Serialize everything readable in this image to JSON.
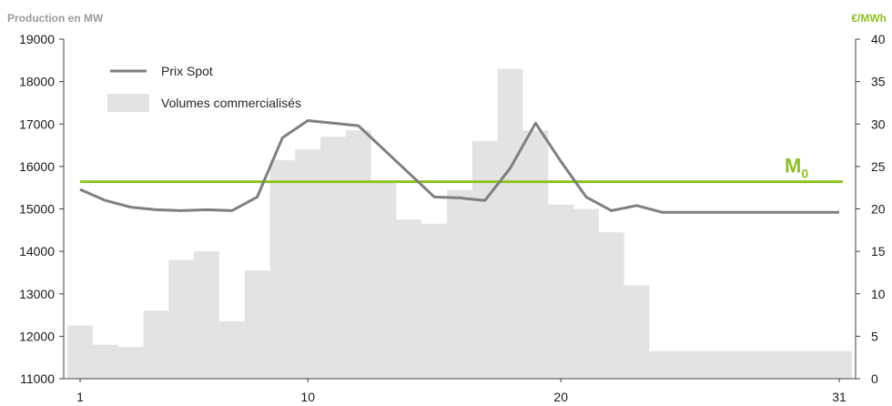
{
  "chart_data": {
    "type": "bar+line",
    "y_left": {
      "title": "Production en MW",
      "min": 11000,
      "max": 19000,
      "step": 1000
    },
    "y_right": {
      "title": "€/MWh",
      "min": 0,
      "max": 40,
      "step": 5
    },
    "x": {
      "min": 1,
      "max": 31,
      "ticks": [
        1,
        10,
        20,
        31
      ]
    },
    "series": [
      {
        "name": "Volumes commercialisés",
        "kind": "bar",
        "axis": "left",
        "x": [
          1,
          2,
          3,
          4,
          5,
          6,
          7,
          8,
          9,
          10,
          11,
          12,
          13,
          14,
          15,
          16,
          17,
          18,
          19,
          20,
          21,
          22,
          23,
          24,
          25,
          26,
          27,
          28,
          29,
          30,
          31
        ],
        "values": [
          12250,
          11800,
          11750,
          12600,
          13800,
          14000,
          12350,
          13550,
          16150,
          16400,
          16700,
          16850,
          15650,
          14750,
          14650,
          15450,
          16600,
          18300,
          16850,
          15100,
          15000,
          14450,
          13200,
          11650,
          11650,
          11650,
          11650,
          11650,
          11650,
          11650,
          11650
        ]
      },
      {
        "name": "Prix Spot",
        "kind": "line",
        "axis": "right",
        "x": [
          1,
          2,
          3,
          4,
          5,
          6,
          7,
          8,
          9,
          10,
          11,
          12,
          13,
          14,
          15,
          16,
          17,
          18,
          19,
          20,
          21,
          22,
          23,
          24,
          25,
          26,
          27,
          28,
          29,
          30,
          31
        ],
        "values": [
          22.3,
          21.0,
          20.2,
          19.9,
          19.8,
          19.9,
          19.8,
          21.4,
          28.4,
          30.4,
          30.1,
          29.8,
          27.0,
          24.2,
          21.4,
          21.3,
          21.0,
          24.8,
          30.1,
          25.6,
          21.4,
          19.8,
          20.4,
          19.6,
          19.6,
          19.6,
          19.6,
          19.6,
          19.6,
          19.6,
          19.6
        ]
      }
    ],
    "reference_line": {
      "label": "M",
      "subscript": "0",
      "axis": "right",
      "value": 23.2
    },
    "colors": {
      "bars": "#e3e3e3",
      "line": "#7f7f7f",
      "reference": "#8dc21f",
      "left_title": "#9a9a9a"
    },
    "legend": {
      "placement": "top-left"
    }
  }
}
